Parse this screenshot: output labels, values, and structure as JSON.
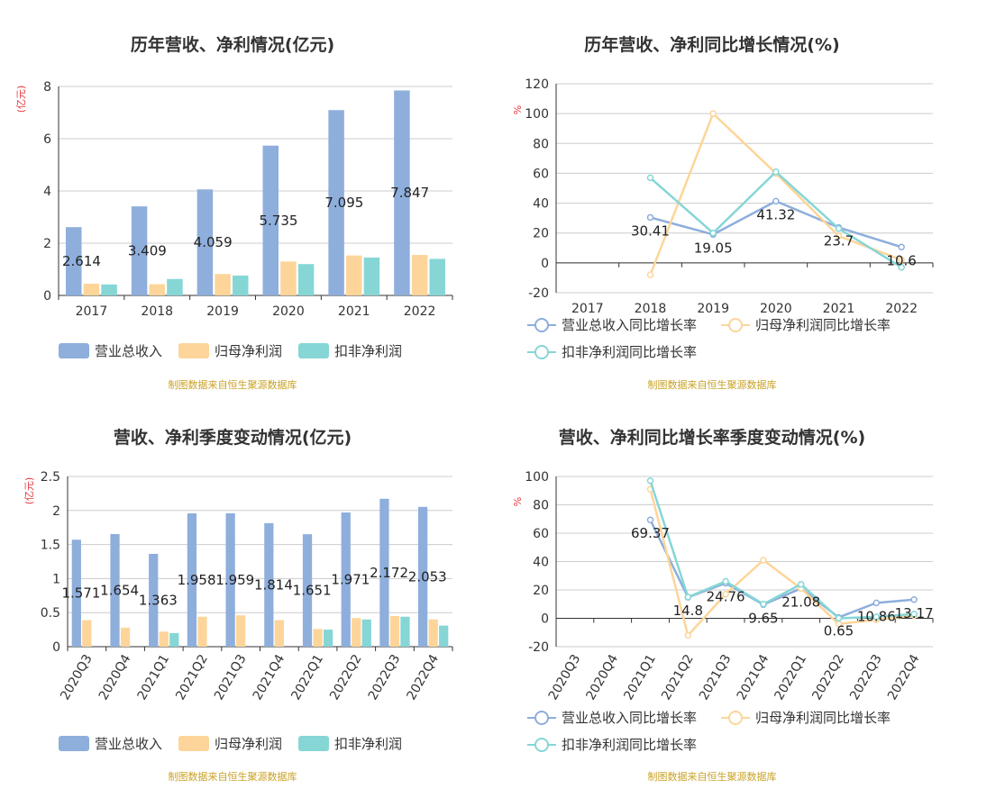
{
  "colors": {
    "revenue": "#8eaedc",
    "net_profit": "#fdd59a",
    "deducted_profit": "#86d6d6",
    "grid": "#cccccc",
    "axis": "#333333",
    "unit": "#e6363a",
    "source": "#c9a227"
  },
  "chart_data": [
    {
      "type": "bar",
      "title": "历年营收、净利情况(亿元)",
      "ylabel": "(亿元)",
      "ylim": [
        0,
        8
      ],
      "yticks": [
        "0",
        "2",
        "4",
        "6",
        "8"
      ],
      "categories": [
        "2017",
        "2018",
        "2019",
        "2020",
        "2021",
        "2022"
      ],
      "series": [
        {
          "name": "营业总收入",
          "values": [
            2.614,
            3.409,
            4.059,
            5.735,
            7.095,
            7.847
          ],
          "labels": [
            "2.614",
            "3.409",
            "4.059",
            "5.735",
            "7.095",
            "7.847"
          ]
        },
        {
          "name": "归母净利润",
          "values": [
            0.45,
            0.43,
            0.82,
            1.3,
            1.53,
            1.55
          ]
        },
        {
          "name": "扣非净利润",
          "values": [
            0.42,
            0.63,
            0.76,
            1.2,
            1.45,
            1.4
          ]
        }
      ],
      "legend": "bottom",
      "source": "制图数据来自恒生聚源数据库"
    },
    {
      "type": "line",
      "title": "历年营收、净利同比增长情况(%)",
      "ylabel": "%",
      "ylim": [
        -20,
        120
      ],
      "yticks": [
        "-20",
        "0",
        "20",
        "40",
        "60",
        "80",
        "100",
        "120"
      ],
      "categories": [
        "2017",
        "2018",
        "2019",
        "2020",
        "2021",
        "2022"
      ],
      "series": [
        {
          "name": "营业总收入同比增长率",
          "values": [
            null,
            30.41,
            19.05,
            41.32,
            23.7,
            10.6
          ],
          "labels": [
            "",
            "30.41",
            "19.05",
            "41.32",
            "23.7",
            "10.6"
          ]
        },
        {
          "name": "归母净利润同比增长率",
          "values": [
            null,
            -8,
            100,
            60,
            18,
            2
          ]
        },
        {
          "name": "扣非净利润同比增长率",
          "values": [
            null,
            57,
            20,
            61,
            23,
            -3
          ]
        }
      ],
      "legend": "bottom",
      "source": "制图数据来自恒生聚源数据库"
    },
    {
      "type": "bar",
      "title": "营收、净利季度变动情况(亿元)",
      "ylabel": "(亿元)",
      "ylim": [
        0,
        2.5
      ],
      "yticks": [
        "0",
        "0.5",
        "1",
        "1.5",
        "2",
        "2.5"
      ],
      "categories": [
        "2020Q3",
        "2020Q4",
        "2021Q1",
        "2021Q2",
        "2021Q3",
        "2021Q4",
        "2022Q1",
        "2022Q2",
        "2022Q3",
        "2022Q4"
      ],
      "series": [
        {
          "name": "营业总收入",
          "values": [
            1.571,
            1.654,
            1.363,
            1.958,
            1.959,
            1.814,
            1.651,
            1.971,
            2.172,
            2.053
          ],
          "labels": [
            "1.571",
            "1.654",
            "1.363",
            "1.958",
            "1.959",
            "1.814",
            "1.651",
            "1.971",
            "2.172",
            "2.053"
          ]
        },
        {
          "name": "归母净利润",
          "values": [
            0.39,
            0.28,
            0.22,
            0.44,
            0.46,
            0.39,
            0.26,
            0.42,
            0.45,
            0.4
          ]
        },
        {
          "name": "扣非净利润",
          "values": [
            null,
            null,
            0.2,
            null,
            null,
            null,
            0.25,
            0.4,
            0.44,
            0.31
          ]
        }
      ],
      "legend": "bottom",
      "source": "制图数据来自恒生聚源数据库"
    },
    {
      "type": "line",
      "title": "营收、净利同比增长率季度变动情况(%)",
      "ylabel": "%",
      "ylim": [
        -20,
        100
      ],
      "yticks": [
        "-20",
        "0",
        "20",
        "40",
        "60",
        "80",
        "100"
      ],
      "categories": [
        "2020Q3",
        "2020Q4",
        "2021Q1",
        "2021Q2",
        "2021Q3",
        "2021Q4",
        "2022Q1",
        "2022Q2",
        "2022Q3",
        "2022Q4"
      ],
      "series": [
        {
          "name": "营业总收入同比增长率",
          "values": [
            null,
            null,
            69.37,
            14.8,
            24.76,
            9.65,
            21.08,
            0.65,
            10.86,
            13.17
          ],
          "labels": [
            "",
            "",
            "69.37",
            "14.8",
            "24.76",
            "9.65",
            "21.08",
            "0.65",
            "10.86",
            "13.17"
          ]
        },
        {
          "name": "归母净利润同比增长率",
          "values": [
            null,
            null,
            91,
            -12,
            17,
            41,
            21,
            -4,
            -1,
            2
          ]
        },
        {
          "name": "扣非净利润同比增长率",
          "values": [
            null,
            null,
            97,
            15,
            26,
            10,
            24,
            0,
            1,
            3
          ]
        }
      ],
      "legend": "bottom",
      "source": "制图数据来自恒生聚源数据库"
    }
  ]
}
